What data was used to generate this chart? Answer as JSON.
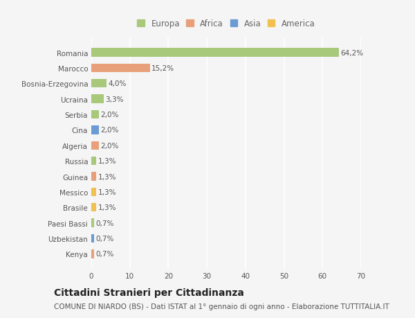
{
  "categories": [
    "Kenya",
    "Uzbekistan",
    "Paesi Bassi",
    "Brasile",
    "Messico",
    "Guinea",
    "Russia",
    "Algeria",
    "Cina",
    "Serbia",
    "Ucraina",
    "Bosnia-Erzegovina",
    "Marocco",
    "Romania"
  ],
  "values": [
    0.7,
    0.7,
    0.7,
    1.3,
    1.3,
    1.3,
    1.3,
    2.0,
    2.0,
    2.0,
    3.3,
    4.0,
    15.2,
    64.2
  ],
  "labels": [
    "0,7%",
    "0,7%",
    "0,7%",
    "1,3%",
    "1,3%",
    "1,3%",
    "1,3%",
    "2,0%",
    "2,0%",
    "2,0%",
    "3,3%",
    "4,0%",
    "15,2%",
    "64,2%"
  ],
  "bar_colors": [
    "#e8a07a",
    "#6b9bd2",
    "#a8c87a",
    "#f0c050",
    "#f0c050",
    "#e8a07a",
    "#a8c87a",
    "#e8a07a",
    "#6b9bd2",
    "#a8c87a",
    "#a8c87a",
    "#a8c87a",
    "#e8a07a",
    "#a8c87a"
  ],
  "legend_labels": [
    "Europa",
    "Africa",
    "Asia",
    "America"
  ],
  "legend_colors": [
    "#a8c87a",
    "#e8a07a",
    "#6b9bd2",
    "#f0c050"
  ],
  "title": "Cittadini Stranieri per Cittadinanza",
  "subtitle": "COMUNE DI NIARDO (BS) - Dati ISTAT al 1° gennaio di ogni anno - Elaborazione TUTTITALIA.IT",
  "xlim": [
    0,
    70
  ],
  "xticks": [
    0,
    10,
    20,
    30,
    40,
    50,
    60,
    70
  ],
  "background_color": "#f5f5f5",
  "bar_height": 0.55,
  "title_fontsize": 10,
  "subtitle_fontsize": 7.5,
  "label_fontsize": 7.5,
  "tick_fontsize": 7.5,
  "legend_fontsize": 8.5
}
